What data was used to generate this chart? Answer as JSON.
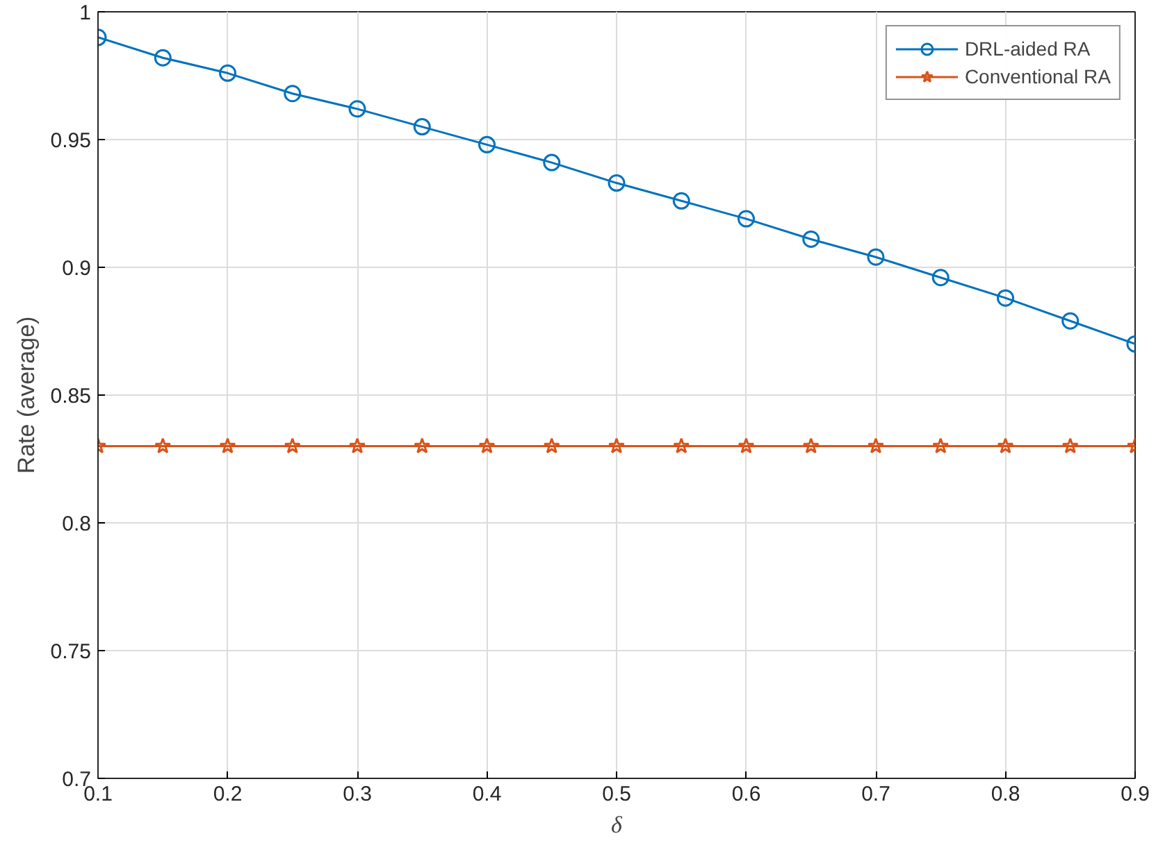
{
  "chart_data": {
    "type": "line",
    "xlabel": "δ",
    "ylabel": "Rate (average)",
    "x": [
      0.1,
      0.15,
      0.2,
      0.25,
      0.3,
      0.35,
      0.4,
      0.45,
      0.5,
      0.55,
      0.6,
      0.65,
      0.7,
      0.75,
      0.8,
      0.85,
      0.9
    ],
    "series": [
      {
        "name": "DRL-aided RA",
        "color": "#0072bd",
        "marker": "circle",
        "values": [
          0.99,
          0.982,
          0.976,
          0.968,
          0.962,
          0.955,
          0.948,
          0.941,
          0.933,
          0.926,
          0.919,
          0.911,
          0.904,
          0.896,
          0.888,
          0.879,
          0.87
        ]
      },
      {
        "name": "Conventional RA",
        "color": "#d95319",
        "marker": "star",
        "values": [
          0.83,
          0.83,
          0.83,
          0.83,
          0.83,
          0.83,
          0.83,
          0.83,
          0.83,
          0.83,
          0.83,
          0.83,
          0.83,
          0.83,
          0.83,
          0.83,
          0.83
        ]
      }
    ],
    "xlim": [
      0.1,
      0.9
    ],
    "ylim": [
      0.7,
      1
    ],
    "xticks": [
      0.1,
      0.2,
      0.3,
      0.4,
      0.5,
      0.6,
      0.7,
      0.8,
      0.9
    ],
    "yticks": [
      0.7,
      0.75,
      0.8,
      0.85,
      0.9,
      0.95,
      1
    ],
    "grid": true,
    "legend": "top right",
    "line_style": "solid"
  }
}
